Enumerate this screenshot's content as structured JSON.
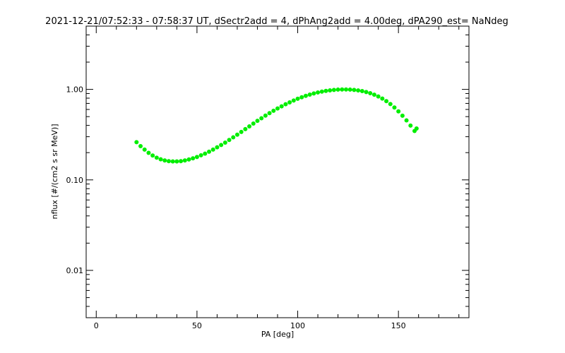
{
  "chart_data": {
    "type": "scatter",
    "title": "2021-12-21/07:52:33 - 07:58:37 UT, dSectr2add = 4, dPhAng2add = 4.00deg, dPA290_est=    NaNdeg",
    "xlabel": "PA [deg]",
    "ylabel": "nflux [#/(cm2 s sr MeV)]",
    "xlim": [
      -5,
      185
    ],
    "ylim": [
      0.003,
      5.0
    ],
    "yscale": "log",
    "x_ticks": [
      {
        "value": 0,
        "label": "0"
      },
      {
        "value": 50,
        "label": "50"
      },
      {
        "value": 100,
        "label": "100"
      },
      {
        "value": 150,
        "label": "150"
      }
    ],
    "y_ticks": [
      {
        "value": 0.01,
        "label": "0.01"
      },
      {
        "value": 0.1,
        "label": "0.10"
      },
      {
        "value": 1.0,
        "label": "1.00"
      }
    ],
    "grid": false,
    "series": [
      {
        "color": "#00ee00",
        "x": [
          20,
          22,
          24,
          26,
          28,
          30,
          32,
          34,
          36,
          38,
          40,
          42,
          44,
          46,
          48,
          50,
          52,
          54,
          56,
          58,
          60,
          62,
          64,
          66,
          68,
          70,
          72,
          74,
          76,
          78,
          80,
          82,
          84,
          86,
          88,
          90,
          92,
          94,
          96,
          98,
          100,
          102,
          104,
          106,
          108,
          110,
          112,
          114,
          116,
          118,
          120,
          122,
          124,
          126,
          128,
          130,
          132,
          134,
          136,
          138,
          140,
          142,
          144,
          146,
          148,
          150,
          152,
          154,
          156,
          158,
          159
        ],
        "y": [
          0.261,
          0.236,
          0.216,
          0.199,
          0.186,
          0.176,
          0.169,
          0.164,
          0.161,
          0.16,
          0.16,
          0.161,
          0.164,
          0.168,
          0.173,
          0.179,
          0.187,
          0.195,
          0.205,
          0.216,
          0.229,
          0.243,
          0.258,
          0.276,
          0.295,
          0.316,
          0.339,
          0.364,
          0.39,
          0.419,
          0.449,
          0.48,
          0.513,
          0.546,
          0.58,
          0.615,
          0.65,
          0.685,
          0.719,
          0.753,
          0.787,
          0.818,
          0.848,
          0.876,
          0.902,
          0.925,
          0.945,
          0.962,
          0.976,
          0.987,
          0.994,
          0.998,
          0.998,
          0.994,
          0.986,
          0.974,
          0.957,
          0.934,
          0.907,
          0.874,
          0.835,
          0.791,
          0.742,
          0.688,
          0.631,
          0.572,
          0.512,
          0.454,
          0.398,
          0.347,
          0.37
        ]
      }
    ]
  }
}
